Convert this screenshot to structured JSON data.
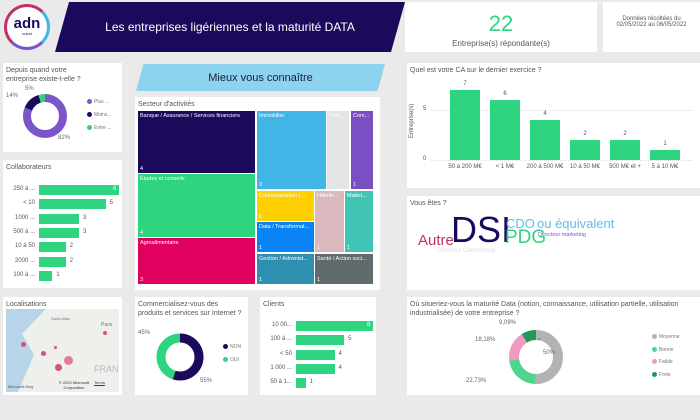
{
  "header": {
    "logo_text": "adn",
    "logo_sub": "ouest",
    "title": "Les entreprises ligériennes et la maturité DATA",
    "kpi_value": "22",
    "kpi_label": "Entreprise(s) répondante(s)",
    "date_line1": "Données récoltées du",
    "date_line2": "02/05/2022 au 06/05/2022",
    "section_banner": "Mieux vous connaître"
  },
  "colors": {
    "navy": "#1b0a5c",
    "green": "#2ed47f",
    "purple": "#7c55c8",
    "banner": "#8dd3f0"
  },
  "chart_data": [
    {
      "id": "anciennete",
      "type": "pie",
      "title": "Depuis quand votre entreprise existe-t-elle ?",
      "slices": [
        {
          "name": "Plus ...",
          "value": 82,
          "label": "82%",
          "color": "#7c55c8"
        },
        {
          "name": "Moins...",
          "value": 14,
          "label": "14%",
          "color": "#1b0a5c"
        },
        {
          "name": "Entre ...",
          "value": 5,
          "label": "5%",
          "color": "#2ed47f"
        }
      ]
    },
    {
      "id": "collaborateurs",
      "type": "bar",
      "orientation": "horizontal",
      "title": "Collaborateurs",
      "categories": [
        "250 à ...",
        "< 10",
        "1000 ...",
        "500 à ...",
        "10 à 50",
        "2000 ...",
        "100 à ..."
      ],
      "values": [
        6,
        5,
        3,
        3,
        2,
        2,
        1
      ]
    },
    {
      "id": "secteur",
      "type": "treemap",
      "title": "Secteur d'activités",
      "items": [
        {
          "name": "Banque / Assurance / Services financiers",
          "value": 4,
          "color": "#1b0a5c"
        },
        {
          "name": "Études et conseils",
          "value": 4,
          "color": "#2ed47f"
        },
        {
          "name": "Agroalimentaire",
          "value": 3,
          "color": "#e0005e"
        },
        {
          "name": "Immobilier",
          "value": 3,
          "color": "#41b6e6"
        },
        {
          "name": "Distr...",
          "value": 1,
          "color": "#e4e4e4"
        },
        {
          "name": "Com...",
          "value": 1,
          "color": "#7b4fc4"
        },
        {
          "name": "Communication / ...",
          "value": 1,
          "color": "#ffd000"
        },
        {
          "name": "Data / Transformat...",
          "value": 1,
          "color": "#0a84f5"
        },
        {
          "name": "Hôtelle...",
          "value": 1,
          "color": "#d9b9bd"
        },
        {
          "name": "Matéri...",
          "value": 1,
          "color": "#40c4b4"
        },
        {
          "name": "Gestion / Administ...",
          "value": 1,
          "color": "#2f8fb0"
        },
        {
          "name": "Santé / Action soci...",
          "value": 1,
          "color": "#5f6b6d"
        }
      ]
    },
    {
      "id": "ca",
      "type": "bar",
      "title": "Quel est votre CA sur le dernier exercice ?",
      "ylabel": "Entreprise(s)",
      "yticks": [
        0,
        5
      ],
      "ylim": [
        0,
        7.5
      ],
      "categories": [
        "50 à 200 M€",
        "< 1 M€",
        "200 à 500 M€",
        "10 à 50 M€",
        "500 M€ et +",
        "5 à 10 M€"
      ],
      "values": [
        7,
        6,
        4,
        2,
        2,
        1
      ]
    },
    {
      "id": "internet",
      "type": "pie",
      "title": "Commercialisez-vous des produits et services sur Internet ?",
      "slices": [
        {
          "name": "NON",
          "value": 55,
          "label": "55%",
          "color": "#1b0a5c"
        },
        {
          "name": "OUI",
          "value": 45,
          "label": "45%",
          "color": "#2ed47f"
        }
      ]
    },
    {
      "id": "clients",
      "type": "bar",
      "orientation": "horizontal",
      "title": "Clients",
      "categories": [
        "10 00...",
        "100 à ...",
        "< 50",
        "1 000 ...",
        "50 à 1..."
      ],
      "values": [
        8,
        5,
        4,
        4,
        1
      ]
    },
    {
      "id": "maturite",
      "type": "pie",
      "title": "Où situeriez-vous la maturité Data (notion, connaissance, utilisation partielle, utilisation industrialisée) de votre entreprise ?",
      "slices": [
        {
          "name": "Moyenne",
          "value": 50,
          "label": "50%",
          "color": "#b3b3b3"
        },
        {
          "name": "Bonne",
          "value": 22.73,
          "label": "22,73%",
          "color": "#4ed68f"
        },
        {
          "name": "Faible",
          "value": 18.18,
          "label": "18,18%",
          "color": "#f09ac0"
        },
        {
          "name": "Forte",
          "value": 9.09,
          "label": "9,09%",
          "color": "#1f9a5a"
        }
      ]
    }
  ],
  "vous_etes": {
    "title": "Vous êtes ?",
    "words": [
      {
        "text": "Autre",
        "color": "#c0306a"
      },
      {
        "text": "DSI",
        "color": "#1b0a5c"
      },
      {
        "text": "CDO",
        "color": "#5bc0e8"
      },
      {
        "text": "PDG",
        "color": "#2ed47f"
      },
      {
        "text": "ou équivalent",
        "color": "#5bc0e8"
      },
      {
        "text": "Directeur marketing",
        "color": "#7c55c8"
      },
      {
        "text": "Directeur Commercial",
        "color": "#dddddd"
      }
    ]
  },
  "map": {
    "title": "Localisations",
    "places": [
      "Saint-Malo",
      "Paris",
      "FRANC"
    ],
    "copyright": "© 2022 Microsoft Corporation",
    "terms": "Terms",
    "brand": "Microsoft Bing"
  }
}
